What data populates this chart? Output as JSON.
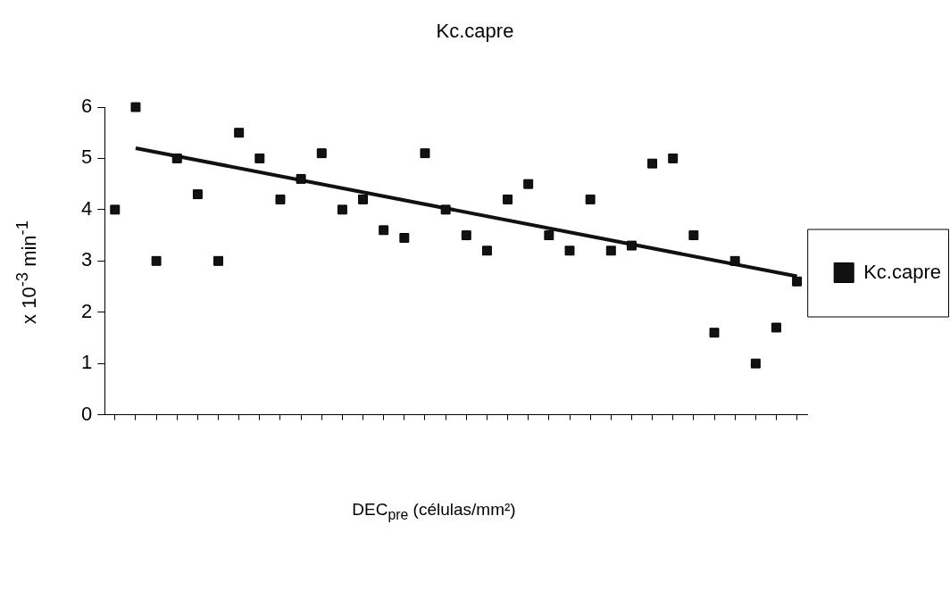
{
  "chart_data": {
    "type": "scatter",
    "title": "Kc.capre",
    "xlabel": "DEC$_{pre}$ (células/mm²)",
    "ylabel": "x 10$^{-3}$ min$^{-1}$",
    "categories": [
      null,
      null,
      null,
      null,
      null,
      null,
      null,
      null,
      null,
      null,
      null,
      null,
      null,
      null,
      null,
      null,
      null,
      null,
      null,
      null,
      null,
      null,
      null,
      null,
      null,
      null,
      null,
      null,
      null,
      null,
      null,
      null,
      null,
      null
    ],
    "series": [
      {
        "name": "Kc.capre",
        "color": "#111111",
        "marker": "square",
        "values": [
          4.0,
          6.0,
          3.0,
          5.0,
          4.3,
          3.0,
          5.5,
          5.0,
          4.2,
          4.6,
          5.1,
          4.0,
          4.2,
          3.6,
          3.45,
          5.1,
          4.0,
          3.5,
          3.2,
          4.2,
          4.5,
          3.5,
          3.2,
          4.2,
          3.2,
          3.3,
          4.9,
          5.0,
          3.5,
          1.6,
          3.0,
          1.0,
          1.7,
          2.6
        ]
      },
      {
        "type": "line",
        "color": "#111111",
        "marker": "none",
        "values": [
          null,
          5.2,
          null,
          null,
          null,
          null,
          null,
          null,
          null,
          null,
          null,
          null,
          null,
          null,
          null,
          null,
          null,
          null,
          null,
          null,
          null,
          null,
          null,
          null,
          null,
          null,
          null,
          null,
          null,
          null,
          null,
          null,
          null,
          2.7
        ]
      }
    ],
    "ylim": [
      0,
      6
    ],
    "yticks": [
      0,
      1,
      2,
      3,
      4,
      5,
      6
    ],
    "grid": false,
    "legend": "right"
  }
}
